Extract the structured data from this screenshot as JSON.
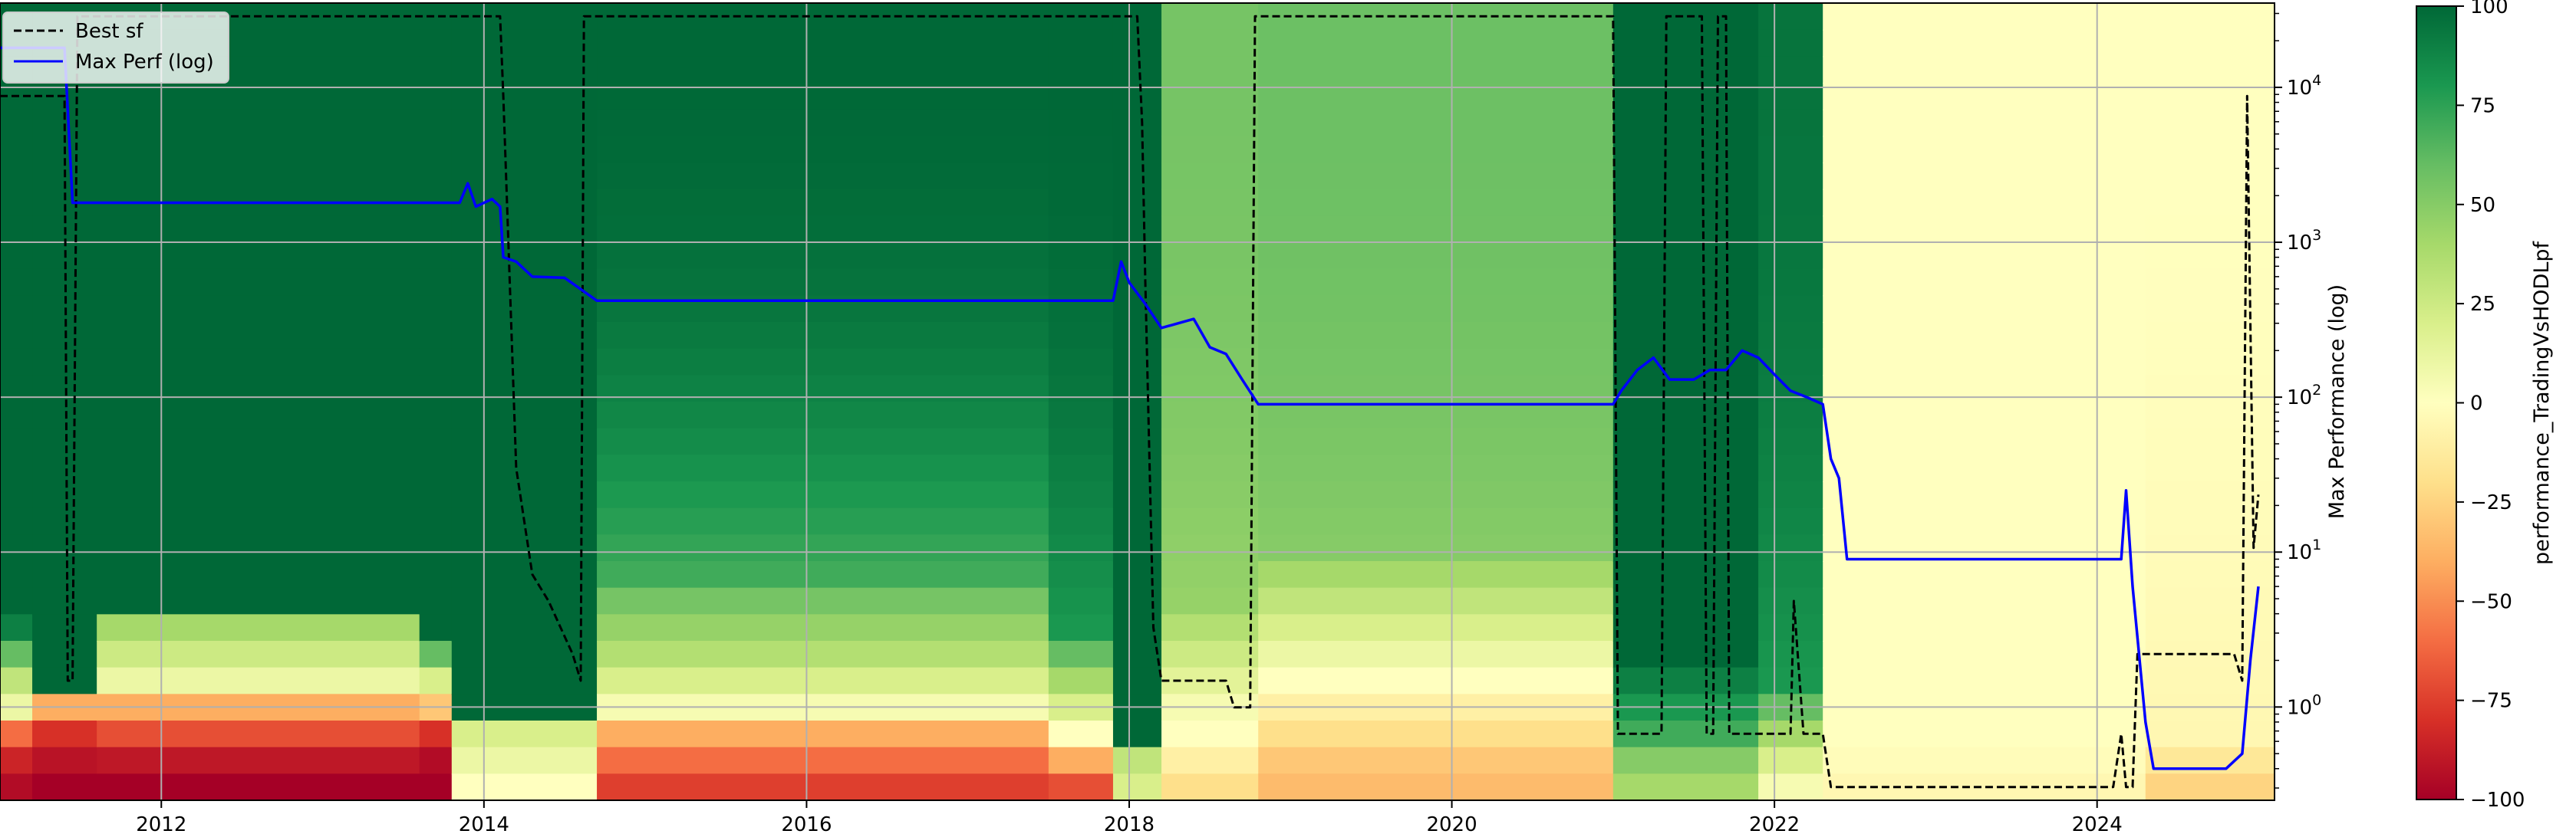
{
  "chart_data": {
    "type": "heatmap",
    "x_axis": {
      "type": "time",
      "range": [
        2011.0,
        2025.1
      ],
      "tick_labels": [
        "2012",
        "2014",
        "2016",
        "2018",
        "2020",
        "2022",
        "2024"
      ],
      "grid": true
    },
    "right_axis": {
      "label": "Max Performance (log)",
      "scale": "log",
      "range": [
        0.25,
        35000
      ],
      "tick_labels": [
        "10^0",
        "10^1",
        "10^2",
        "10^3",
        "10^4"
      ],
      "tick_values": [
        1,
        10,
        100,
        1000,
        10000
      ]
    },
    "colorbar": {
      "label": "performance_TradingVsHODLpf",
      "range": [
        -100,
        100
      ],
      "tick_labels": [
        "100",
        "75",
        "50",
        "25",
        "0",
        "−25",
        "−50",
        "−75",
        "−100"
      ],
      "tick_values": [
        100,
        75,
        50,
        25,
        0,
        -25,
        -50,
        -75,
        -100
      ],
      "colormap": "RdYlGn"
    },
    "legend": {
      "placement": "top-left",
      "entries": [
        {
          "label": "Best sf",
          "style": "dashed",
          "color": "#000000"
        },
        {
          "label": "Max Perf (log)",
          "style": "solid",
          "color": "#0000ff"
        }
      ]
    },
    "heatmap_rows": 30,
    "heatmap_segments": [
      {
        "x": [
          2011.0,
          2011.2
        ],
        "top_value": 100,
        "bottom_values": [
          100,
          90,
          60,
          30,
          10,
          -60,
          -85,
          -95
        ]
      },
      {
        "x": [
          2011.2,
          2011.6
        ],
        "top_value": 100,
        "bottom_values": [
          100,
          100,
          100,
          100,
          -40,
          -80,
          -92,
          -100
        ]
      },
      {
        "x": [
          2011.6,
          2013.6
        ],
        "top_value": 100,
        "bottom_values": [
          100,
          40,
          25,
          10,
          -40,
          -70,
          -90,
          -100
        ]
      },
      {
        "x": [
          2013.6,
          2013.8
        ],
        "top_value": 100,
        "bottom_values": [
          100,
          100,
          60,
          20,
          -30,
          -80,
          -95,
          -100
        ]
      },
      {
        "x": [
          2013.8,
          2014.7
        ],
        "top_value": 100,
        "bottom_values": [
          100,
          100,
          100,
          100,
          100,
          20,
          10,
          0
        ]
      },
      {
        "x": [
          2014.7,
          2017.5
        ],
        "top_value": 100,
        "bottom_values": [
          70,
          55,
          45,
          35,
          20,
          5,
          -40,
          -60,
          -75
        ]
      },
      {
        "x": [
          2017.5,
          2017.9
        ],
        "top_value": 100,
        "bottom_values": [
          80,
          60,
          40,
          20,
          0,
          -40,
          -70
        ]
      },
      {
        "x": [
          2017.9,
          2018.2
        ],
        "top_value": 100,
        "bottom_values": [
          100,
          100,
          100,
          100,
          30,
          20
        ]
      },
      {
        "x": [
          2018.2,
          2018.8
        ],
        "top_value": 55,
        "bottom_values": [
          45,
          35,
          25,
          15,
          5,
          0,
          -10,
          -20
        ]
      },
      {
        "x": [
          2018.8,
          2021.0
        ],
        "top_value": 58,
        "bottom_values": [
          50,
          40,
          30,
          20,
          10,
          0,
          -10,
          -20,
          -30,
          -35
        ]
      },
      {
        "x": [
          2021.0,
          2021.9
        ],
        "top_value": 100,
        "bottom_values": [
          100,
          90,
          80,
          70,
          50,
          40
        ]
      },
      {
        "x": [
          2021.9,
          2022.3
        ],
        "top_value": 95,
        "bottom_values": [
          80,
          60,
          40,
          20,
          5
        ]
      },
      {
        "x": [
          2022.3,
          2024.3
        ],
        "top_value": 0,
        "bottom_values": [
          0,
          -2,
          -5
        ]
      },
      {
        "x": [
          2024.3,
          2025.1
        ],
        "top_value": 0,
        "bottom_values": [
          -5,
          -15,
          -25
        ]
      }
    ],
    "series": [
      {
        "name": "Best sf",
        "style": "dashed",
        "axis": "heatmap_row",
        "points": [
          [
            2011.0,
            3
          ],
          [
            2011.4,
            3
          ],
          [
            2011.42,
            25
          ],
          [
            2011.45,
            25
          ],
          [
            2011.48,
            0
          ],
          [
            2013.1,
            0
          ],
          [
            2014.1,
            0
          ],
          [
            2014.12,
            3
          ],
          [
            2014.2,
            17
          ],
          [
            2014.3,
            21
          ],
          [
            2014.4,
            22
          ],
          [
            2014.55,
            24
          ],
          [
            2014.6,
            25
          ],
          [
            2014.62,
            0
          ],
          [
            2015.5,
            0
          ],
          [
            2017.6,
            0
          ],
          [
            2018.05,
            0
          ],
          [
            2018.08,
            4
          ],
          [
            2018.1,
            10
          ],
          [
            2018.15,
            23
          ],
          [
            2018.2,
            25
          ],
          [
            2018.6,
            25
          ],
          [
            2018.65,
            26
          ],
          [
            2018.75,
            26
          ],
          [
            2018.78,
            0
          ],
          [
            2020.3,
            0
          ],
          [
            2021.0,
            0
          ],
          [
            2021.03,
            27
          ],
          [
            2021.3,
            27
          ],
          [
            2021.33,
            0
          ],
          [
            2021.55,
            0
          ],
          [
            2021.58,
            27
          ],
          [
            2021.62,
            27
          ],
          [
            2021.65,
            0
          ],
          [
            2021.7,
            0
          ],
          [
            2021.72,
            27
          ],
          [
            2022.0,
            27
          ],
          [
            2022.1,
            27
          ],
          [
            2022.12,
            22
          ],
          [
            2022.18,
            27
          ],
          [
            2022.3,
            27
          ],
          [
            2022.35,
            29
          ],
          [
            2024.1,
            29
          ],
          [
            2024.15,
            27
          ],
          [
            2024.18,
            29
          ],
          [
            2024.22,
            29
          ],
          [
            2024.25,
            24
          ],
          [
            2024.85,
            24
          ],
          [
            2024.9,
            25
          ],
          [
            2024.93,
            3
          ],
          [
            2024.97,
            20
          ],
          [
            2025.0,
            18
          ]
        ]
      },
      {
        "name": "Max Perf (log)",
        "style": "solid",
        "axis": "right",
        "points": [
          [
            2011.0,
            18000
          ],
          [
            2011.4,
            18000
          ],
          [
            2011.45,
            1800
          ],
          [
            2013.0,
            1800
          ],
          [
            2013.85,
            1800
          ],
          [
            2013.9,
            2400
          ],
          [
            2013.95,
            1700
          ],
          [
            2014.05,
            1900
          ],
          [
            2014.1,
            1700
          ],
          [
            2014.12,
            800
          ],
          [
            2014.2,
            750
          ],
          [
            2014.3,
            600
          ],
          [
            2014.5,
            590
          ],
          [
            2014.7,
            420
          ],
          [
            2015.0,
            420
          ],
          [
            2016.0,
            420
          ],
          [
            2017.5,
            420
          ],
          [
            2017.9,
            420
          ],
          [
            2017.95,
            750
          ],
          [
            2018.0,
            550
          ],
          [
            2018.1,
            400
          ],
          [
            2018.2,
            280
          ],
          [
            2018.4,
            320
          ],
          [
            2018.5,
            210
          ],
          [
            2018.6,
            190
          ],
          [
            2018.7,
            130
          ],
          [
            2018.8,
            90
          ],
          [
            2019.0,
            90
          ],
          [
            2020.0,
            90
          ],
          [
            2021.0,
            90
          ],
          [
            2021.05,
            110
          ],
          [
            2021.15,
            150
          ],
          [
            2021.25,
            180
          ],
          [
            2021.35,
            130
          ],
          [
            2021.5,
            130
          ],
          [
            2021.6,
            150
          ],
          [
            2021.7,
            150
          ],
          [
            2021.8,
            200
          ],
          [
            2021.9,
            180
          ],
          [
            2022.0,
            140
          ],
          [
            2022.1,
            110
          ],
          [
            2022.2,
            100
          ],
          [
            2022.3,
            90
          ],
          [
            2022.35,
            40
          ],
          [
            2022.4,
            30
          ],
          [
            2022.45,
            9
          ],
          [
            2023.0,
            9
          ],
          [
            2024.0,
            9
          ],
          [
            2024.15,
            9
          ],
          [
            2024.18,
            25
          ],
          [
            2024.22,
            6
          ],
          [
            2024.3,
            0.8
          ],
          [
            2024.35,
            0.4
          ],
          [
            2024.8,
            0.4
          ],
          [
            2024.9,
            0.5
          ],
          [
            2024.95,
            2
          ],
          [
            2025.0,
            6
          ]
        ]
      }
    ]
  }
}
